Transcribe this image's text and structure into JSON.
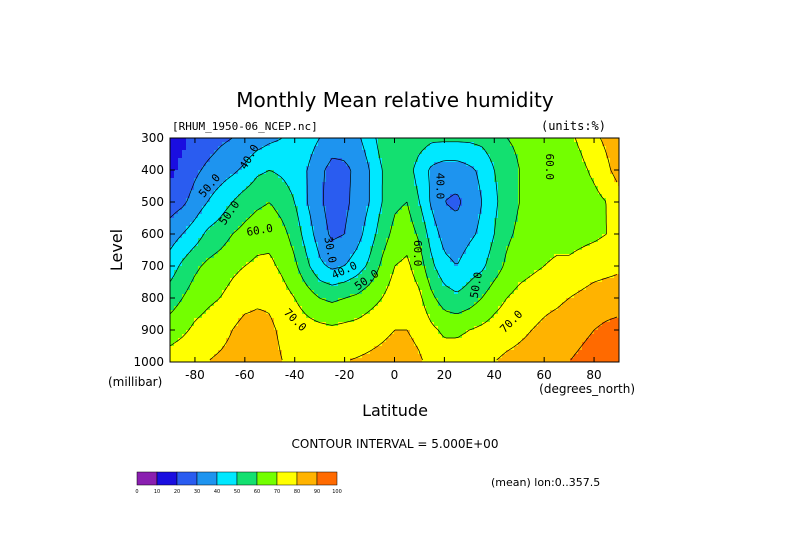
{
  "chart_data": {
    "type": "heatmap",
    "title": "Monthly Mean relative humidity",
    "dataset_label": "[RHUM_1950-06_NCEP.nc]",
    "units_label": "(units:%)",
    "xlabel": "Latitude",
    "ylabel": "Level",
    "x_units_label": "(degrees_north)",
    "y_units_label": "(millibar)",
    "x_ticks": [
      "-80",
      "-60",
      "-40",
      "-20",
      "0",
      "20",
      "40",
      "60",
      "80"
    ],
    "y_ticks": [
      "300",
      "400",
      "500",
      "600",
      "700",
      "800",
      "900",
      "1000"
    ],
    "xlim": [
      -90,
      90
    ],
    "ylim": [
      1000,
      300
    ],
    "contour_interval_label": "CONTOUR INTERVAL = 5.000E+00",
    "mean_label": "(mean) lon:0..357.5",
    "contour_labels": [
      {
        "text": "40.0",
        "lat": -58,
        "lev": 360,
        "angle": -60
      },
      {
        "text": "50.0",
        "lat": -74,
        "lev": 450,
        "angle": -50
      },
      {
        "text": "50.0",
        "lat": -66,
        "lev": 535,
        "angle": -55
      },
      {
        "text": "60.0",
        "lat": -54,
        "lev": 590,
        "angle": -10
      },
      {
        "text": "30.0",
        "lat": -26,
        "lev": 650,
        "angle": 80
      },
      {
        "text": "40.0",
        "lat": -20,
        "lev": 715,
        "angle": -25
      },
      {
        "text": "50.0",
        "lat": -11,
        "lev": 745,
        "angle": -35
      },
      {
        "text": "60.0",
        "lat": 9,
        "lev": 660,
        "angle": 90
      },
      {
        "text": "40.0",
        "lat": 18,
        "lev": 450,
        "angle": 90
      },
      {
        "text": "50.0",
        "lat": 33,
        "lev": 760,
        "angle": -80
      },
      {
        "text": "70.0",
        "lat": -40,
        "lev": 870,
        "angle": 45
      },
      {
        "text": "70.0",
        "lat": 47,
        "lev": 875,
        "angle": -45
      },
      {
        "text": "60.0",
        "lat": 62,
        "lev": 390,
        "angle": 90
      }
    ],
    "colorbar": {
      "ticks": [
        "0",
        "10",
        "20",
        "30",
        "40",
        "50",
        "60",
        "70",
        "80",
        "90",
        "100"
      ],
      "colors": [
        "#8a1fb0",
        "#1a0ee0",
        "#2a5cf0",
        "#1e94ef",
        "#00e8ff",
        "#13e070",
        "#73ff00",
        "#ffff00",
        "#ffb300",
        "#ff6a00",
        "#ff0000"
      ]
    },
    "contour_levels": [
      30,
      40,
      50,
      60,
      70,
      80,
      90
    ],
    "profiles": [
      {
        "lat": -90,
        "rh": [
          15,
          18,
          25,
          35,
          45,
          55,
          65,
          75
        ]
      },
      {
        "lat": -85,
        "rh": [
          18,
          22,
          28,
          40,
          52,
          60,
          68,
          77
        ]
      },
      {
        "lat": -80,
        "rh": [
          22,
          28,
          34,
          45,
          58,
          65,
          72,
          79
        ]
      },
      {
        "lat": -75,
        "rh": [
          25,
          32,
          40,
          52,
          62,
          68,
          74,
          80
        ]
      },
      {
        "lat": -70,
        "rh": [
          28,
          35,
          45,
          55,
          65,
          70,
          76,
          82
        ]
      },
      {
        "lat": -65,
        "rh": [
          30,
          38,
          50,
          60,
          68,
          73,
          80,
          84
        ]
      },
      {
        "lat": -60,
        "rh": [
          32,
          42,
          55,
          63,
          70,
          76,
          84,
          87
        ]
      },
      {
        "lat": -55,
        "rh": [
          35,
          48,
          58,
          66,
          72,
          78,
          84,
          86
        ]
      },
      {
        "lat": -50,
        "rh": [
          38,
          50,
          60,
          67,
          72,
          78,
          82,
          84
        ]
      },
      {
        "lat": -45,
        "rh": [
          40,
          48,
          56,
          63,
          68,
          74,
          78,
          80
        ]
      },
      {
        "lat": -40,
        "rh": [
          45,
          45,
          50,
          56,
          62,
          70,
          76,
          78
        ]
      },
      {
        "lat": -35,
        "rh": [
          45,
          40,
          40,
          45,
          52,
          65,
          74,
          76
        ]
      },
      {
        "lat": -30,
        "rh": [
          40,
          32,
          32,
          35,
          42,
          60,
          73,
          77
        ]
      },
      {
        "lat": -25,
        "rh": [
          35,
          27,
          25,
          28,
          38,
          58,
          72,
          78
        ]
      },
      {
        "lat": -20,
        "rh": [
          35,
          28,
          28,
          30,
          40,
          60,
          73,
          80
        ]
      },
      {
        "lat": -15,
        "rh": [
          38,
          32,
          33,
          36,
          45,
          62,
          74,
          81
        ]
      },
      {
        "lat": -10,
        "rh": [
          45,
          40,
          40,
          45,
          52,
          66,
          76,
          82
        ]
      },
      {
        "lat": -5,
        "rh": [
          55,
          50,
          50,
          55,
          62,
          70,
          78,
          83
        ]
      },
      {
        "lat": 0,
        "rh": [
          60,
          56,
          58,
          63,
          70,
          75,
          80,
          84
        ]
      },
      {
        "lat": 5,
        "rh": [
          60,
          55,
          60,
          66,
          72,
          76,
          80,
          83
        ]
      },
      {
        "lat": 10,
        "rh": [
          55,
          45,
          50,
          58,
          65,
          72,
          78,
          81
        ]
      },
      {
        "lat": 15,
        "rh": [
          52,
          38,
          38,
          45,
          52,
          62,
          72,
          78
        ]
      },
      {
        "lat": 20,
        "rh": [
          52,
          35,
          30,
          36,
          43,
          55,
          68,
          76
        ]
      },
      {
        "lat": 25,
        "rh": [
          52,
          35,
          28,
          34,
          40,
          52,
          68,
          76
        ]
      },
      {
        "lat": 30,
        "rh": [
          52,
          38,
          34,
          38,
          45,
          55,
          70,
          77
        ]
      },
      {
        "lat": 35,
        "rh": [
          53,
          42,
          40,
          42,
          48,
          60,
          72,
          78
        ]
      },
      {
        "lat": 40,
        "rh": [
          56,
          50,
          48,
          50,
          55,
          66,
          74,
          80
        ]
      },
      {
        "lat": 45,
        "rh": [
          60,
          55,
          55,
          58,
          62,
          70,
          76,
          82
        ]
      },
      {
        "lat": 50,
        "rh": [
          62,
          60,
          60,
          62,
          66,
          73,
          78,
          83
        ]
      },
      {
        "lat": 55,
        "rh": [
          64,
          63,
          63,
          64,
          68,
          75,
          80,
          84
        ]
      },
      {
        "lat": 60,
        "rh": [
          65,
          64,
          64,
          65,
          70,
          77,
          82,
          86
        ]
      },
      {
        "lat": 65,
        "rh": [
          66,
          65,
          64,
          66,
          72,
          78,
          84,
          88
        ]
      },
      {
        "lat": 70,
        "rh": [
          68,
          66,
          64,
          66,
          72,
          80,
          86,
          90
        ]
      },
      {
        "lat": 75,
        "rh": [
          72,
          68,
          66,
          67,
          74,
          82,
          88,
          92
        ]
      },
      {
        "lat": 80,
        "rh": [
          78,
          72,
          67,
          68,
          76,
          84,
          90,
          94
        ]
      },
      {
        "lat": 85,
        "rh": [
          82,
          78,
          70,
          70,
          77,
          85,
          92,
          96
        ]
      },
      {
        "lat": 90,
        "rh": [
          86,
          84,
          76,
          72,
          78,
          86,
          93,
          97
        ]
      }
    ]
  }
}
